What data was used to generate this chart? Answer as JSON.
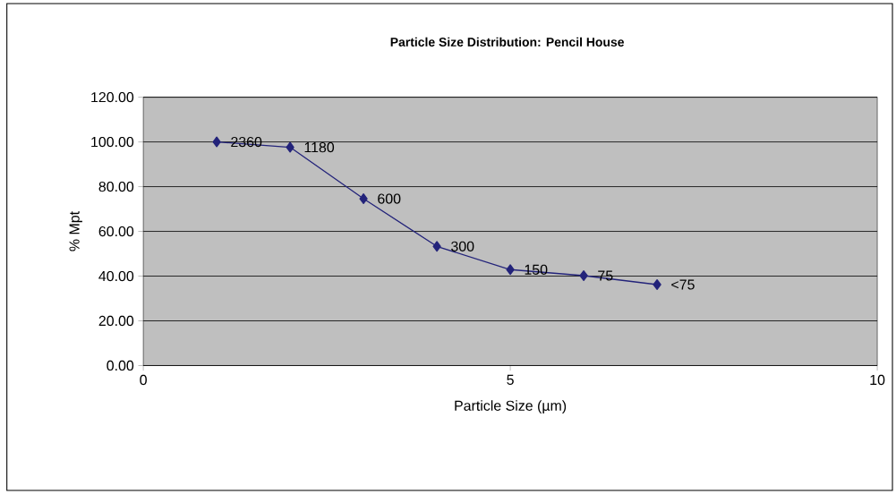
{
  "chart_data": {
    "type": "line",
    "title": "Particle Size Distribution: Pencil House",
    "xlabel": "Particle Size (µm)",
    "ylabel": "% Mpt",
    "x": [
      1,
      2,
      3,
      4,
      5,
      6,
      7
    ],
    "series": [
      {
        "color": "#23237a",
        "values": [
          100,
          97.6,
          74.6,
          53.3,
          42.9,
          40.2,
          36.2
        ]
      }
    ],
    "xlim": [
      0,
      10
    ],
    "xticks": [
      0,
      5,
      10
    ],
    "ylim": [
      0,
      120
    ],
    "yticks": [
      {
        "value": 0,
        "label": "0.00"
      },
      {
        "value": 20,
        "label": "20.00"
      },
      {
        "value": 40,
        "label": "40.00"
      },
      {
        "value": 60,
        "label": "60.00"
      },
      {
        "value": 80,
        "label": "80.00"
      },
      {
        "value": 100,
        "label": "100.00"
      },
      {
        "value": 120,
        "label": "120.00"
      }
    ],
    "grid": "y",
    "marker": "diamond",
    "line_style": "solid",
    "annotations": [
      {
        "text": "2360",
        "x": 1,
        "y": 100
      },
      {
        "text": "1180",
        "x": 2,
        "y": 97.6
      },
      {
        "text": "600",
        "x": 3,
        "y": 74.6
      },
      {
        "text": "300",
        "x": 4,
        "y": 53.3
      },
      {
        "text": "150",
        "x": 5,
        "y": 42.9
      },
      {
        "text": "75",
        "x": 6,
        "y": 40.2
      },
      {
        "text": "<75",
        "x": 7,
        "y": 36.2
      }
    ]
  }
}
